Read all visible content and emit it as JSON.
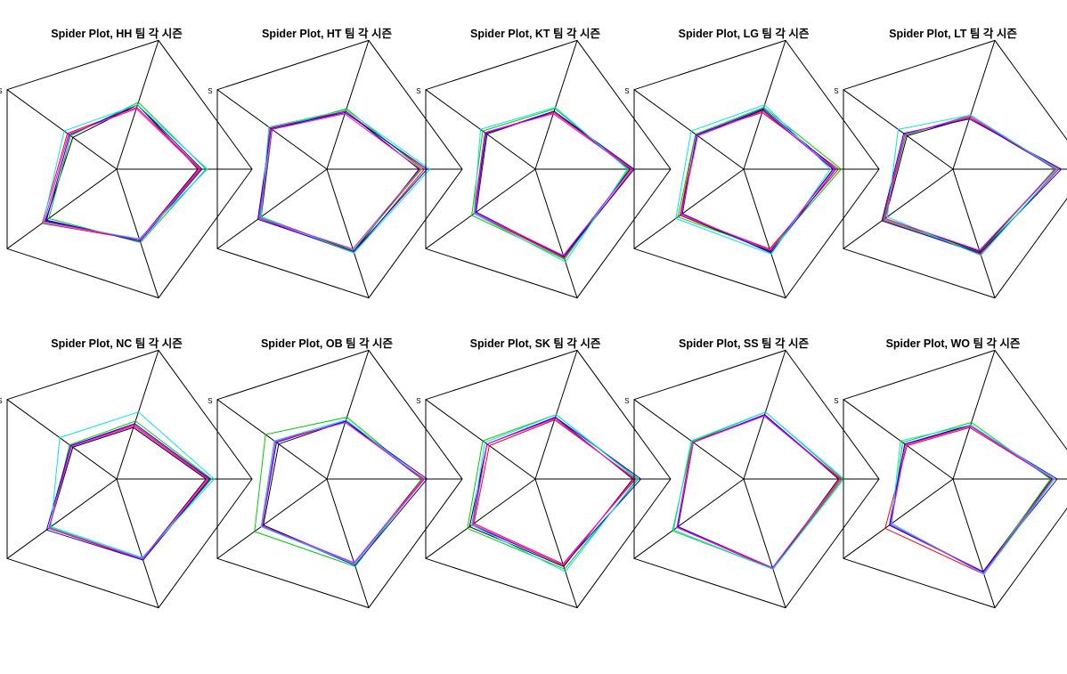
{
  "figure": {
    "background": "#ffffff"
  },
  "chart_data": [
    {
      "type": "radar",
      "title": "Spider Plot, HH 팀 각 시즌",
      "axis_labels": [
        "",
        "",
        "",
        "S",
        ""
      ],
      "rlim": [
        0,
        1
      ],
      "series": [
        {
          "color": "#000000",
          "values": [
            0.6,
            0.55,
            0.65,
            0.4,
            0.5
          ]
        },
        {
          "color": "#ff0000",
          "values": [
            0.62,
            0.55,
            0.68,
            0.45,
            0.48
          ]
        },
        {
          "color": "#00cc00",
          "values": [
            0.66,
            0.57,
            0.62,
            0.42,
            0.52
          ]
        },
        {
          "color": "#0000ff",
          "values": [
            0.63,
            0.56,
            0.64,
            0.43,
            0.5
          ]
        },
        {
          "color": "#00e5ee",
          "values": [
            0.67,
            0.54,
            0.67,
            0.48,
            0.5
          ]
        },
        {
          "color": "#ff00ff",
          "values": [
            0.61,
            0.55,
            0.66,
            0.44,
            0.47
          ]
        }
      ]
    },
    {
      "type": "radar",
      "title": "Spider Plot, HT 팀 각 시즌",
      "axis_labels": [
        "",
        "",
        "",
        "S",
        ""
      ],
      "rlim": [
        0,
        1
      ],
      "series": [
        {
          "color": "#000000",
          "values": [
            0.68,
            0.64,
            0.6,
            0.5,
            0.45
          ]
        },
        {
          "color": "#ff0000",
          "values": [
            0.72,
            0.65,
            0.62,
            0.52,
            0.45
          ]
        },
        {
          "color": "#00cc00",
          "values": [
            0.7,
            0.63,
            0.61,
            0.5,
            0.47
          ]
        },
        {
          "color": "#0000ff",
          "values": [
            0.74,
            0.64,
            0.63,
            0.51,
            0.44
          ]
        },
        {
          "color": "#00e5ee",
          "values": [
            0.76,
            0.65,
            0.6,
            0.53,
            0.46
          ]
        },
        {
          "color": "#ff00ff",
          "values": [
            0.69,
            0.62,
            0.62,
            0.5,
            0.43
          ]
        }
      ]
    },
    {
      "type": "radar",
      "title": "Spider Plot, KT 팀 각 시즌",
      "axis_labels": [
        "",
        "",
        "",
        "S",
        ""
      ],
      "rlim": [
        0,
        1
      ],
      "series": [
        {
          "color": "#000000",
          "values": [
            0.7,
            0.68,
            0.55,
            0.45,
            0.45
          ]
        },
        {
          "color": "#ff0000",
          "values": [
            0.72,
            0.69,
            0.56,
            0.46,
            0.44
          ]
        },
        {
          "color": "#00cc00",
          "values": [
            0.69,
            0.7,
            0.58,
            0.48,
            0.47
          ]
        },
        {
          "color": "#0000ff",
          "values": [
            0.73,
            0.68,
            0.54,
            0.44,
            0.45
          ]
        },
        {
          "color": "#00e5ee",
          "values": [
            0.68,
            0.72,
            0.56,
            0.5,
            0.48
          ]
        },
        {
          "color": "#ff00ff",
          "values": [
            0.71,
            0.67,
            0.55,
            0.46,
            0.43
          ]
        }
      ]
    },
    {
      "type": "radar",
      "title": "Spider Plot, LG 팀 각 시즌",
      "axis_labels": [
        "",
        "",
        "",
        "S",
        ""
      ],
      "rlim": [
        0,
        1
      ],
      "series": [
        {
          "color": "#000000",
          "values": [
            0.66,
            0.64,
            0.58,
            0.42,
            0.46
          ]
        },
        {
          "color": "#ff0000",
          "values": [
            0.7,
            0.62,
            0.58,
            0.44,
            0.44
          ]
        },
        {
          "color": "#00cc00",
          "values": [
            0.72,
            0.63,
            0.6,
            0.44,
            0.48
          ]
        },
        {
          "color": "#0000ff",
          "values": [
            0.68,
            0.65,
            0.56,
            0.43,
            0.47
          ]
        },
        {
          "color": "#00e5ee",
          "values": [
            0.64,
            0.66,
            0.62,
            0.48,
            0.5
          ]
        },
        {
          "color": "#ff00ff",
          "values": [
            0.67,
            0.63,
            0.57,
            0.42,
            0.45
          ]
        }
      ]
    },
    {
      "type": "radar",
      "title": "Spider Plot, LT 팀 각 시즌",
      "axis_labels": [
        "",
        "",
        "",
        "S",
        ""
      ],
      "rlim": [
        0,
        1
      ],
      "series": [
        {
          "color": "#000000",
          "values": [
            0.76,
            0.64,
            0.62,
            0.42,
            0.4
          ]
        },
        {
          "color": "#ff0000",
          "values": [
            0.78,
            0.66,
            0.64,
            0.44,
            0.4
          ]
        },
        {
          "color": "#00cc00",
          "values": [
            0.75,
            0.65,
            0.63,
            0.43,
            0.42
          ]
        },
        {
          "color": "#0000ff",
          "values": [
            0.8,
            0.65,
            0.65,
            0.45,
            0.39
          ]
        },
        {
          "color": "#00e5ee",
          "values": [
            0.77,
            0.67,
            0.6,
            0.5,
            0.42
          ]
        },
        {
          "color": "#ff00ff",
          "values": [
            0.76,
            0.63,
            0.62,
            0.44,
            0.41
          ]
        }
      ]
    },
    {
      "type": "radar",
      "title": "Spider Plot, NC 팀 각 시즌",
      "axis_labels": [
        "",
        "",
        "",
        "S",
        ""
      ],
      "rlim": [
        0,
        1
      ],
      "series": [
        {
          "color": "#000000",
          "values": [
            0.66,
            0.62,
            0.62,
            0.4,
            0.4
          ]
        },
        {
          "color": "#ff0000",
          "values": [
            0.68,
            0.63,
            0.62,
            0.42,
            0.42
          ]
        },
        {
          "color": "#00cc00",
          "values": [
            0.7,
            0.62,
            0.61,
            0.43,
            0.45
          ]
        },
        {
          "color": "#0000ff",
          "values": [
            0.69,
            0.63,
            0.64,
            0.42,
            0.43
          ]
        },
        {
          "color": "#00e5ee",
          "values": [
            0.72,
            0.61,
            0.6,
            0.52,
            0.52
          ]
        },
        {
          "color": "#ff00ff",
          "values": [
            0.67,
            0.62,
            0.62,
            0.41,
            0.41
          ]
        }
      ]
    },
    {
      "type": "radar",
      "title": "Spider Plot, OB 팀 각 시즌",
      "axis_labels": [
        "",
        "",
        "",
        "S",
        ""
      ],
      "rlim": [
        0,
        1
      ],
      "series": [
        {
          "color": "#000000",
          "values": [
            0.7,
            0.66,
            0.58,
            0.44,
            0.45
          ]
        },
        {
          "color": "#ff0000",
          "values": [
            0.72,
            0.66,
            0.6,
            0.48,
            0.44
          ]
        },
        {
          "color": "#00cc00",
          "values": [
            0.7,
            0.68,
            0.66,
            0.56,
            0.48
          ]
        },
        {
          "color": "#0000ff",
          "values": [
            0.74,
            0.67,
            0.59,
            0.46,
            0.45
          ]
        },
        {
          "color": "#00e5ee",
          "values": [
            0.71,
            0.66,
            0.6,
            0.48,
            0.46
          ]
        },
        {
          "color": "#ff00ff",
          "values": [
            0.71,
            0.65,
            0.59,
            0.47,
            0.44
          ]
        }
      ]
    },
    {
      "type": "radar",
      "title": "Spider Plot, SK 팀 각 시즌",
      "axis_labels": [
        "",
        "",
        "",
        "S",
        ""
      ],
      "rlim": [
        0,
        1
      ],
      "series": [
        {
          "color": "#000000",
          "values": [
            0.72,
            0.68,
            0.6,
            0.44,
            0.48
          ]
        },
        {
          "color": "#ff0000",
          "values": [
            0.74,
            0.66,
            0.56,
            0.42,
            0.46
          ]
        },
        {
          "color": "#00cc00",
          "values": [
            0.76,
            0.7,
            0.62,
            0.48,
            0.5
          ]
        },
        {
          "color": "#0000ff",
          "values": [
            0.78,
            0.67,
            0.58,
            0.44,
            0.48
          ]
        },
        {
          "color": "#00e5ee",
          "values": [
            0.75,
            0.72,
            0.58,
            0.46,
            0.5
          ]
        },
        {
          "color": "#ff00ff",
          "values": [
            0.73,
            0.67,
            0.57,
            0.44,
            0.47
          ]
        }
      ]
    },
    {
      "type": "radar",
      "title": "Spider Plot, SS 팀 각 시즌",
      "axis_labels": [
        "",
        "",
        "",
        "S",
        ""
      ],
      "rlim": [
        0,
        1
      ],
      "series": [
        {
          "color": "#000000",
          "values": [
            0.7,
            0.7,
            0.6,
            0.46,
            0.5
          ]
        },
        {
          "color": "#ff0000",
          "values": [
            0.72,
            0.7,
            0.61,
            0.47,
            0.49
          ]
        },
        {
          "color": "#00cc00",
          "values": [
            0.73,
            0.7,
            0.65,
            0.47,
            0.52
          ]
        },
        {
          "color": "#0000ff",
          "values": [
            0.71,
            0.69,
            0.6,
            0.46,
            0.5
          ]
        },
        {
          "color": "#00e5ee",
          "values": [
            0.74,
            0.7,
            0.64,
            0.48,
            0.52
          ]
        },
        {
          "color": "#ff00ff",
          "values": [
            0.71,
            0.69,
            0.61,
            0.46,
            0.49
          ]
        }
      ]
    },
    {
      "type": "radar",
      "title": "Spider Plot, WO 팀 각 시즌",
      "axis_labels": [
        "",
        "",
        "",
        "S",
        ""
      ],
      "rlim": [
        0,
        1
      ],
      "series": [
        {
          "color": "#000000",
          "values": [
            0.73,
            0.72,
            0.58,
            0.44,
            0.42
          ]
        },
        {
          "color": "#ff0000",
          "values": [
            0.74,
            0.74,
            0.62,
            0.42,
            0.4
          ]
        },
        {
          "color": "#00cc00",
          "values": [
            0.72,
            0.73,
            0.56,
            0.46,
            0.44
          ]
        },
        {
          "color": "#0000ff",
          "values": [
            0.77,
            0.72,
            0.58,
            0.44,
            0.41
          ]
        },
        {
          "color": "#00e5ee",
          "values": [
            0.75,
            0.74,
            0.56,
            0.48,
            0.42
          ]
        },
        {
          "color": "#ff00ff",
          "values": [
            0.74,
            0.73,
            0.57,
            0.43,
            0.41
          ]
        }
      ]
    }
  ]
}
